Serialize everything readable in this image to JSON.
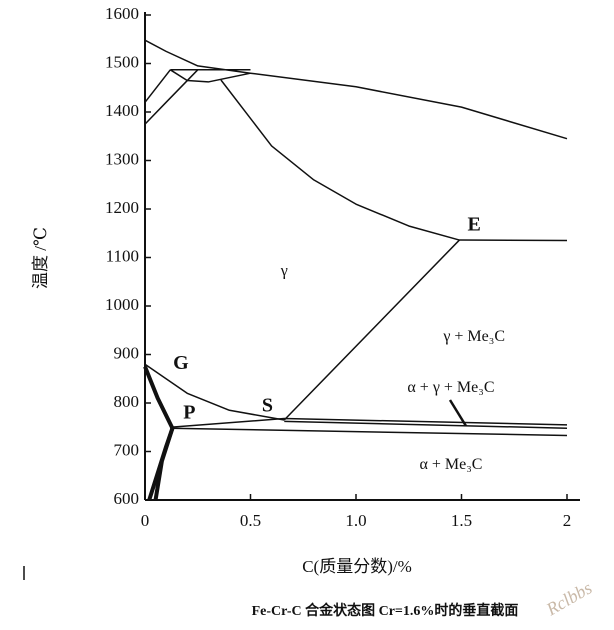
{
  "chart_data": {
    "type": "phase-diagram",
    "title": "Fe-Cr-C 合金状态图 Cr=1.6%时的垂直截面",
    "x_label": "C(质量分数)/%",
    "y_label": "温度 /℃",
    "watermark": "Rclbbs",
    "xlim": [
      0,
      2
    ],
    "ylim": [
      600,
      1600
    ],
    "xticks": [
      0,
      0.5,
      {
        "value": 1,
        "label": "1.0"
      },
      1.5,
      2
    ],
    "yticks": [
      600,
      700,
      800,
      900,
      1000,
      1100,
      1200,
      1300,
      1400,
      1500,
      1600
    ],
    "color": "#111111",
    "curves": [
      {
        "points": [
          [
            0,
            1548
          ],
          [
            0.1,
            1525
          ],
          [
            0.25,
            1495
          ],
          [
            0.5,
            1480
          ],
          [
            1.0,
            1452
          ],
          [
            1.5,
            1410
          ],
          [
            2.0,
            1345
          ]
        ]
      },
      {
        "points": [
          [
            0.12,
            1487
          ],
          [
            0.5,
            1487
          ]
        ]
      },
      {
        "points": [
          [
            0,
            1420
          ],
          [
            0.12,
            1487
          ]
        ]
      },
      {
        "points": [
          [
            0,
            1375
          ],
          [
            0.1,
            1420
          ],
          [
            0.25,
            1487
          ]
        ]
      },
      {
        "points": [
          [
            0.12,
            1487
          ],
          [
            0.2,
            1465
          ],
          [
            0.3,
            1462
          ],
          [
            0.5,
            1480
          ]
        ]
      },
      {
        "points": [
          [
            0.36,
            1466
          ],
          [
            0.6,
            1330
          ],
          [
            0.8,
            1260
          ],
          [
            1.0,
            1210
          ],
          [
            1.25,
            1165
          ],
          [
            1.49,
            1136
          ]
        ]
      },
      {
        "points": [
          [
            1.49,
            1136
          ],
          [
            2.0,
            1135
          ]
        ]
      },
      {
        "points": [
          [
            0.66,
            765
          ],
          [
            1.49,
            1136
          ]
        ]
      },
      {
        "points": [
          [
            0,
            880
          ],
          [
            0.2,
            820
          ],
          [
            0.4,
            785
          ],
          [
            0.66,
            765
          ]
        ]
      },
      {
        "points": [
          [
            0.12,
            750
          ],
          [
            0.66,
            768
          ],
          [
            2.0,
            755
          ]
        ]
      },
      {
        "points": [
          [
            0.66,
            762
          ],
          [
            2.0,
            748
          ]
        ]
      },
      {
        "points": [
          [
            0.12,
            748
          ],
          [
            2.0,
            733
          ]
        ]
      }
    ],
    "bold_curves": [
      {
        "points": [
          [
            0,
            875
          ],
          [
            0.06,
            810
          ],
          [
            0.13,
            748
          ],
          [
            0.08,
            680
          ],
          [
            0.05,
            600
          ]
        ]
      },
      {
        "points": [
          [
            0.02,
            600
          ],
          [
            0.1,
            710
          ],
          [
            0.13,
            748
          ]
        ]
      }
    ],
    "annotations": [
      {
        "text": "γ",
        "x": 0.66,
        "y": 1070
      },
      {
        "text": "E",
        "x": 1.56,
        "y": 1165
      },
      {
        "text": "γ + Me₃C",
        "x": 1.56,
        "y": 935
      },
      {
        "text": "G",
        "x": 0.17,
        "y": 880
      },
      {
        "text": "P",
        "x": 0.21,
        "y": 778
      },
      {
        "text": "S",
        "x": 0.58,
        "y": 792
      },
      {
        "text": "α + γ + Me₃C",
        "x": 1.45,
        "y": 830
      },
      {
        "text": "α + Me₃C",
        "x": 1.45,
        "y": 672
      }
    ]
  }
}
